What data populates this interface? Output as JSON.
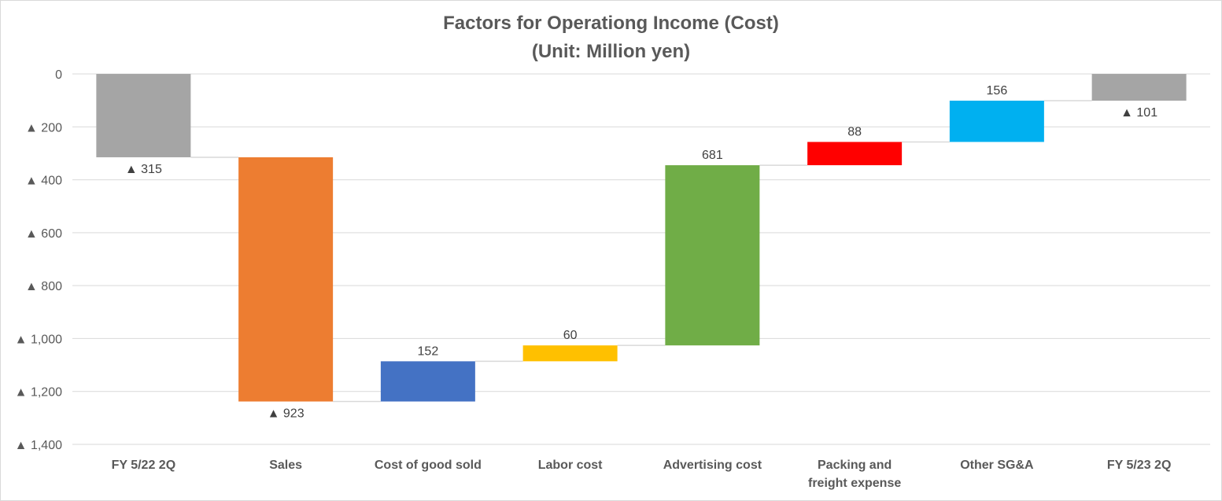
{
  "chart_data": {
    "type": "waterfall",
    "title": "Factors for Operationg Income (Cost)",
    "subtitle": "(Unit: Million yen)",
    "ylim": [
      0,
      -1400
    ],
    "y_ticks": [
      0,
      -200,
      -400,
      -600,
      -800,
      -1000,
      -1200,
      -1400
    ],
    "y_tick_labels": [
      "0",
      "▲ 200",
      "▲ 400",
      "▲ 600",
      "▲ 800",
      "▲ 1,000",
      "▲ 1,200",
      "▲ 1,400"
    ],
    "grid": true,
    "categories": [
      "FY 5/22 2Q",
      "Sales",
      "Cost of good sold",
      "Labor cost",
      "Advertising cost",
      "Packing and freight expense",
      "Other SG&A",
      "FY 5/23 2Q"
    ],
    "category_label_lines": [
      [
        "FY 5/22 2Q"
      ],
      [
        "Sales"
      ],
      [
        "Cost of good sold"
      ],
      [
        "Labor cost"
      ],
      [
        "Advertising cost"
      ],
      [
        "Packing and",
        "freight expense"
      ],
      [
        "Other SG&A"
      ],
      [
        "FY 5/23 2Q"
      ]
    ],
    "values": [
      -315,
      -923,
      152,
      60,
      681,
      88,
      156,
      -101
    ],
    "kinds": [
      "total",
      "delta",
      "delta",
      "delta",
      "delta",
      "delta",
      "delta",
      "total"
    ],
    "data_labels": [
      "▲ 315",
      "▲ 923",
      "152",
      "60",
      "681",
      "88",
      "156",
      "▲ 101"
    ],
    "colors": [
      "#a5a5a5",
      "#ed7d31",
      "#4472c4",
      "#ffc000",
      "#70ad47",
      "#ff0000",
      "#00b0f0",
      "#a5a5a5"
    ]
  }
}
